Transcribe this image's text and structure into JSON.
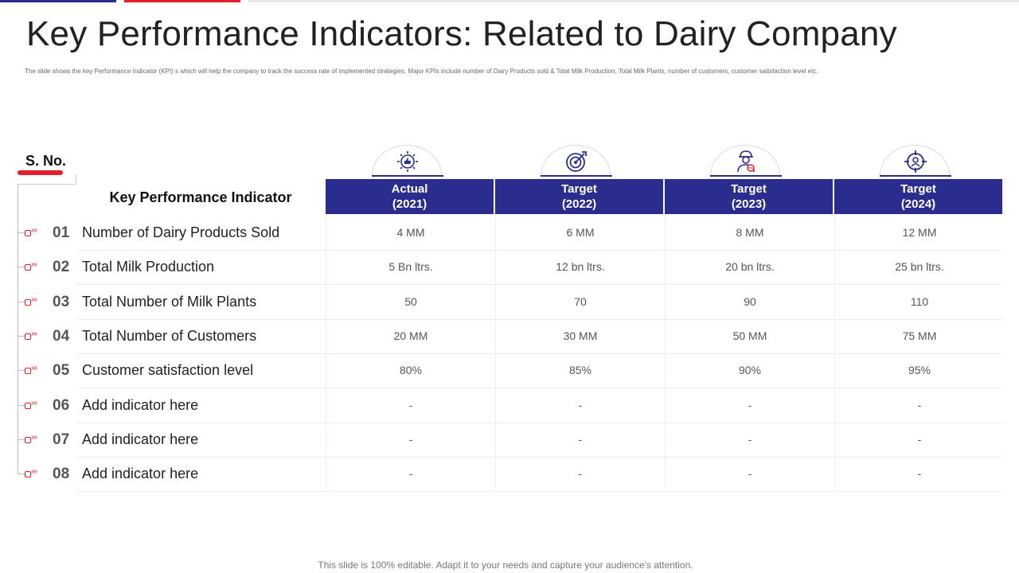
{
  "title": "Key Performance Indicators: Related to Dairy Company",
  "subtitle": "The slide shows the key Performance Indicator (KPI) s which will help the company to track the success rate of implemented strategies. Major KPIs include number of Dairy Products sold & Total Milk Production, Total Milk Plants, number of customers, customer satisfaction level etc.",
  "sno_label": "S. No.",
  "kpi_header": "Key Performance Indicator",
  "columns": [
    {
      "line1": "Actual",
      "line2": "(2021)",
      "icon": "hand-thumbs-up-gear-icon"
    },
    {
      "line1": "Target",
      "line2": "(2022)",
      "icon": "target-arrow-icon"
    },
    {
      "line1": "Target",
      "line2": "(2023)",
      "icon": "engineer-globe-icon"
    },
    {
      "line1": "Target",
      "line2": "(2024)",
      "icon": "crosshair-person-icon"
    }
  ],
  "rows": [
    {
      "num": "01",
      "label": "Number of Dairy Products Sold",
      "values": [
        "4 MM",
        "6 MM",
        "8 MM",
        "12 MM"
      ]
    },
    {
      "num": "02",
      "label": "Total Milk  Production",
      "values": [
        "5 Bn ltrs.",
        "12 bn ltrs.",
        "20 bn ltrs.",
        "25 bn ltrs."
      ]
    },
    {
      "num": "03",
      "label": "Total Number of Milk  Plants",
      "values": [
        "50",
        "70",
        "90",
        "110"
      ]
    },
    {
      "num": "04",
      "label": "Total Number of Customers",
      "values": [
        "20 MM",
        "30 MM",
        "50 MM",
        "75 MM"
      ]
    },
    {
      "num": "05",
      "label": "Customer satisfaction level",
      "values": [
        "80%",
        "85%",
        "90%",
        "95%"
      ]
    },
    {
      "num": "06",
      "label": "Add indicator here",
      "values": [
        "-",
        "-",
        "-",
        "-"
      ]
    },
    {
      "num": "07",
      "label": "Add indicator here",
      "values": [
        "-",
        "-",
        "-",
        "-"
      ]
    },
    {
      "num": "08",
      "label": "Add indicator here",
      "values": [
        "-",
        "-",
        "-",
        "-"
      ]
    }
  ],
  "footer": "This slide is 100% editable. Adapt it to your needs and capture your audience's attention.",
  "colors": {
    "primary": "#2b2d8e",
    "accent": "#e31e2d"
  }
}
